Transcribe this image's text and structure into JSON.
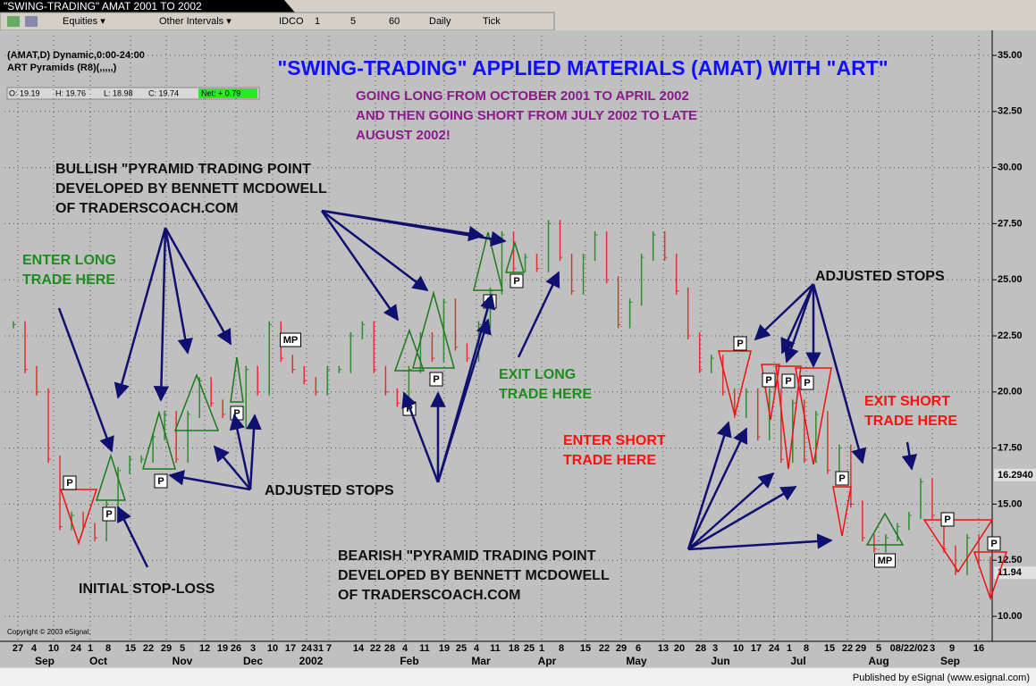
{
  "header": {
    "tab": "\"SWING-TRADING\" AMAT 2001 TO 2002",
    "toolbar": [
      "Equities ▾",
      "Other Intervals ▾",
      "IDCO",
      "1",
      "5",
      "60",
      "Daily",
      "Tick"
    ]
  },
  "footer": "Published by eSignal (www.esignal.com)",
  "chart_data": {
    "type": "price_bars",
    "title": "\"SWING-TRADING\" APPLIED MATERIALS (AMAT) WITH \"ART\"",
    "subtitle": [
      "GOING LONG FROM OCTOBER 2001 TO APRIL 2002",
      "AND THEN GOING SHORT FROM JULY 2002 TO LATE",
      "AUGUST 2002!"
    ],
    "subtitle_color": "#8b1a8b",
    "title_color": "#1010ff",
    "symbol": "(AMAT,D) Dynamic,0:00-24:00",
    "study": "ART Pyramids (R8)(,,,,,)",
    "quote": [
      "O: 19.19",
      "H: 19.76",
      "L: 18.98",
      "C: 19.74"
    ],
    "net": "Net: + 0.79",
    "copyright": "Copyright © 2003 eSignal.",
    "up_color": "#2e8b2e",
    "down_color": "#e03030",
    "values": [
      23,
      21,
      20,
      17,
      14,
      14.5,
      14,
      13.5,
      15,
      16.5,
      17,
      17,
      18,
      19,
      17,
      19,
      20.5,
      19.5,
      19,
      18.5,
      21,
      20,
      23,
      21.5,
      21,
      20.5,
      20,
      21,
      21,
      22.5,
      23,
      21,
      20,
      19.5,
      21,
      22.5,
      21.5,
      24,
      22,
      21.5,
      23,
      24.5,
      27,
      25.5,
      26,
      25.5,
      27.5,
      26,
      24.5,
      26,
      27,
      25,
      23,
      24,
      26,
      27,
      26,
      24.5,
      22.5,
      21,
      21.5,
      20,
      19,
      20,
      18,
      20,
      17,
      19.5,
      17,
      19,
      16.5,
      17.5,
      15,
      13.5,
      13,
      13.5,
      14,
      14.5,
      16,
      14.5,
      13,
      12,
      13.5,
      12.5,
      11
    ],
    "ylim": [
      10,
      35
    ],
    "yticks": [
      {
        "value": 35,
        "label": "35.00"
      },
      {
        "value": 32.5,
        "label": "32.50"
      },
      {
        "value": 30,
        "label": "30.00"
      },
      {
        "value": 27.5,
        "label": "27.50"
      },
      {
        "value": 25,
        "label": "25.00"
      },
      {
        "value": 22.5,
        "label": "22.50"
      },
      {
        "value": 20,
        "label": "20.00"
      },
      {
        "value": 17.5,
        "label": "17.50"
      },
      {
        "value": 15,
        "label": "15.00"
      },
      {
        "value": 12.5,
        "label": "12.50"
      },
      {
        "value": 10,
        "label": "10.00"
      }
    ],
    "price_labels": [
      {
        "value": 16.294,
        "label": "16.2940"
      },
      {
        "value": 11.94,
        "label": "11.94"
      }
    ],
    "grid": true,
    "xticks": [
      "27",
      "4",
      "10",
      "24",
      "1",
      "8",
      "15",
      "22",
      "29",
      "5",
      "12",
      "19",
      "26",
      "3",
      "10",
      "17",
      "24",
      "31",
      "7",
      "14",
      "22",
      "28",
      "4",
      "11",
      "19",
      "25",
      "4",
      "11",
      "18",
      "25",
      "1",
      "8",
      "15",
      "22",
      "29",
      "6",
      "13",
      "20",
      "28",
      "3",
      "10",
      "17",
      "24",
      "1",
      "8",
      "15",
      "22",
      "29",
      "5",
      "08/22/02",
      "3",
      "9",
      "16"
    ],
    "months": [
      "Sep",
      "Oct",
      "Nov",
      "Dec",
      "2002",
      "Feb",
      "Mar",
      "Apr",
      "May",
      "Jun",
      "Jul",
      "Aug",
      "Sep"
    ],
    "markers": [
      "P",
      "P",
      "P",
      "P",
      "MP",
      "P",
      "P",
      "P",
      "P",
      "P",
      "P",
      "P",
      "P",
      "P",
      "MP",
      "P",
      "P"
    ],
    "annotations": [
      {
        "lines": [
          "BULLISH \"PYRAMID TRADING POINT",
          "DEVELOPED BY BENNETT MCDOWELL",
          "OF TRADERSCOACH.COM"
        ],
        "color": "#111111"
      },
      {
        "lines": [
          "ENTER LONG",
          "TRADE HERE"
        ],
        "color": "#1e8c1e"
      },
      {
        "lines": [
          "EXIT LONG",
          "TRADE HERE"
        ],
        "color": "#1e8c1e"
      },
      {
        "lines": [
          "ENTER SHORT",
          "TRADE HERE"
        ],
        "color": "#ff1010"
      },
      {
        "lines": [
          "EXIT SHORT",
          "TRADE HERE"
        ],
        "color": "#ff1010"
      },
      {
        "lines": [
          "ADJUSTED STOPS"
        ],
        "color": "#111111"
      },
      {
        "lines": [
          "ADJUSTED STOPS"
        ],
        "color": "#111111"
      },
      {
        "lines": [
          "INITIAL STOP-LOSS"
        ],
        "color": "#111111"
      },
      {
        "lines": [
          "BEARISH \"PYRAMID TRADING POINT",
          "DEVELOPED BY BENNETT MCDOWELL",
          "OF TRADERSCOACH.COM"
        ],
        "color": "#111111"
      }
    ]
  }
}
